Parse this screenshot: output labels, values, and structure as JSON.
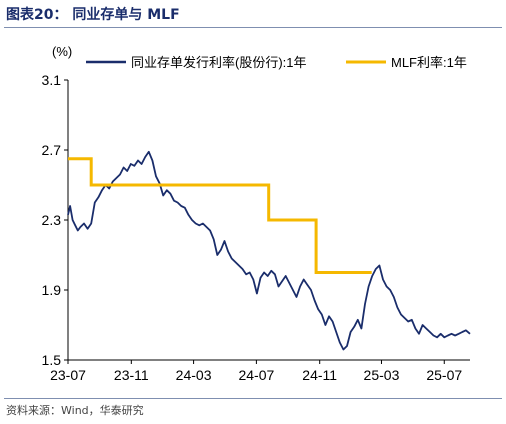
{
  "figure": {
    "title": "图表20：  同业存单与 MLF",
    "source": "资料来源：Wind，华泰研究"
  },
  "chart_data": {
    "type": "line",
    "unit_label": "(%)",
    "y_ticks": [
      "3.1",
      "2.7",
      "2.3",
      "1.9",
      "1.5"
    ],
    "ylim": [
      1.5,
      3.1
    ],
    "x_ticks": [
      "23-07",
      "23-11",
      "24-03",
      "24-07",
      "24-11",
      "25-03",
      "25-07"
    ],
    "x_range": [
      "2023-07-01",
      "2025-08-20"
    ],
    "legend_position": "top",
    "series": [
      {
        "name": "同业存单发行利率(股份行):1年",
        "color": "#1a2d6b",
        "style": "line",
        "points": [
          [
            "2023-07-01",
            2.33
          ],
          [
            "2023-07-05",
            2.38
          ],
          [
            "2023-07-10",
            2.3
          ],
          [
            "2023-07-15",
            2.27
          ],
          [
            "2023-07-20",
            2.24
          ],
          [
            "2023-07-25",
            2.26
          ],
          [
            "2023-08-01",
            2.28
          ],
          [
            "2023-08-08",
            2.25
          ],
          [
            "2023-08-15",
            2.28
          ],
          [
            "2023-08-22",
            2.4
          ],
          [
            "2023-08-29",
            2.43
          ],
          [
            "2023-09-05",
            2.47
          ],
          [
            "2023-09-12",
            2.5
          ],
          [
            "2023-09-19",
            2.48
          ],
          [
            "2023-09-26",
            2.52
          ],
          [
            "2023-10-03",
            2.54
          ],
          [
            "2023-10-10",
            2.56
          ],
          [
            "2023-10-17",
            2.6
          ],
          [
            "2023-10-24",
            2.58
          ],
          [
            "2023-10-31",
            2.62
          ],
          [
            "2023-11-07",
            2.61
          ],
          [
            "2023-11-14",
            2.64
          ],
          [
            "2023-11-21",
            2.62
          ],
          [
            "2023-11-28",
            2.66
          ],
          [
            "2023-12-05",
            2.69
          ],
          [
            "2023-12-12",
            2.64
          ],
          [
            "2023-12-19",
            2.55
          ],
          [
            "2023-12-26",
            2.51
          ],
          [
            "2024-01-02",
            2.44
          ],
          [
            "2024-01-09",
            2.47
          ],
          [
            "2024-01-16",
            2.45
          ],
          [
            "2024-01-23",
            2.41
          ],
          [
            "2024-01-30",
            2.4
          ],
          [
            "2024-02-06",
            2.38
          ],
          [
            "2024-02-13",
            2.37
          ],
          [
            "2024-02-20",
            2.33
          ],
          [
            "2024-02-27",
            2.3
          ],
          [
            "2024-03-05",
            2.28
          ],
          [
            "2024-03-12",
            2.27
          ],
          [
            "2024-03-19",
            2.28
          ],
          [
            "2024-03-26",
            2.26
          ],
          [
            "2024-04-02",
            2.24
          ],
          [
            "2024-04-09",
            2.19
          ],
          [
            "2024-04-16",
            2.1
          ],
          [
            "2024-04-23",
            2.13
          ],
          [
            "2024-04-30",
            2.18
          ],
          [
            "2024-05-07",
            2.12
          ],
          [
            "2024-05-14",
            2.08
          ],
          [
            "2024-05-21",
            2.06
          ],
          [
            "2024-05-28",
            2.04
          ],
          [
            "2024-06-04",
            2.02
          ],
          [
            "2024-06-11",
            1.99
          ],
          [
            "2024-06-18",
            2.0
          ],
          [
            "2024-06-25",
            1.96
          ],
          [
            "2024-07-02",
            1.88
          ],
          [
            "2024-07-09",
            1.97
          ],
          [
            "2024-07-16",
            2.0
          ],
          [
            "2024-07-23",
            1.98
          ],
          [
            "2024-07-30",
            2.01
          ],
          [
            "2024-08-06",
            1.99
          ],
          [
            "2024-08-13",
            1.92
          ],
          [
            "2024-08-20",
            1.95
          ],
          [
            "2024-08-27",
            1.98
          ],
          [
            "2024-09-03",
            1.94
          ],
          [
            "2024-09-10",
            1.9
          ],
          [
            "2024-09-17",
            1.86
          ],
          [
            "2024-09-24",
            1.92
          ],
          [
            "2024-10-01",
            1.96
          ],
          [
            "2024-10-08",
            1.93
          ],
          [
            "2024-10-15",
            1.9
          ],
          [
            "2024-10-22",
            1.84
          ],
          [
            "2024-10-29",
            1.79
          ],
          [
            "2024-11-05",
            1.76
          ],
          [
            "2024-11-12",
            1.7
          ],
          [
            "2024-11-19",
            1.75
          ],
          [
            "2024-11-26",
            1.72
          ],
          [
            "2024-12-03",
            1.66
          ],
          [
            "2024-12-10",
            1.6
          ],
          [
            "2024-12-17",
            1.56
          ],
          [
            "2024-12-24",
            1.58
          ],
          [
            "2024-12-31",
            1.66
          ],
          [
            "2025-01-07",
            1.69
          ],
          [
            "2025-01-14",
            1.73
          ],
          [
            "2025-01-21",
            1.68
          ],
          [
            "2025-01-28",
            1.82
          ],
          [
            "2025-02-04",
            1.92
          ],
          [
            "2025-02-11",
            1.98
          ],
          [
            "2025-02-18",
            2.02
          ],
          [
            "2025-02-25",
            2.04
          ],
          [
            "2025-03-04",
            1.96
          ],
          [
            "2025-03-11",
            1.92
          ],
          [
            "2025-03-18",
            1.9
          ],
          [
            "2025-03-25",
            1.86
          ],
          [
            "2025-04-01",
            1.8
          ],
          [
            "2025-04-08",
            1.76
          ],
          [
            "2025-04-15",
            1.74
          ],
          [
            "2025-04-22",
            1.72
          ],
          [
            "2025-04-29",
            1.73
          ],
          [
            "2025-05-06",
            1.68
          ],
          [
            "2025-05-13",
            1.65
          ],
          [
            "2025-05-20",
            1.7
          ],
          [
            "2025-05-27",
            1.68
          ],
          [
            "2025-06-03",
            1.66
          ],
          [
            "2025-06-10",
            1.64
          ],
          [
            "2025-06-17",
            1.63
          ],
          [
            "2025-06-24",
            1.65
          ],
          [
            "2025-07-01",
            1.63
          ],
          [
            "2025-07-08",
            1.64
          ],
          [
            "2025-07-15",
            1.65
          ],
          [
            "2025-07-22",
            1.64
          ],
          [
            "2025-07-29",
            1.65
          ],
          [
            "2025-08-05",
            1.66
          ],
          [
            "2025-08-12",
            1.67
          ],
          [
            "2025-08-20",
            1.65
          ]
        ]
      },
      {
        "name": "MLF利率:1年",
        "color": "#f5b800",
        "style": "step",
        "points": [
          [
            "2023-07-01",
            2.65
          ],
          [
            "2023-08-15",
            2.5
          ],
          [
            "2024-07-25",
            2.3
          ],
          [
            "2024-10-25",
            2.0
          ],
          [
            "2025-02-10",
            2.0
          ]
        ]
      }
    ]
  }
}
